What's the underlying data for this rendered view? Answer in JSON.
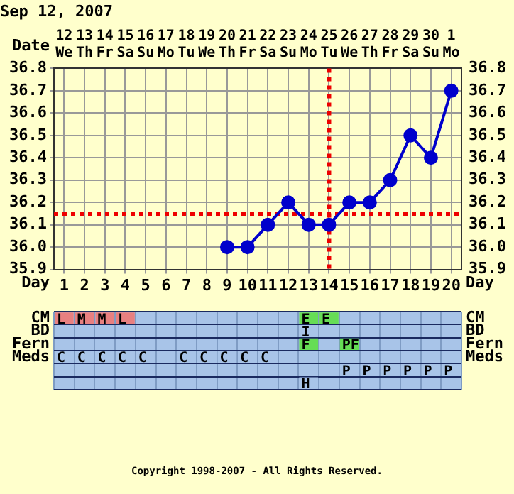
{
  "chart_data": [
    {
      "type": "line",
      "title": "Sep 12, 2007",
      "xlabel": "Day",
      "x2label": "Date",
      "xlim": [
        0.5,
        20.5
      ],
      "xticks": [
        1,
        2,
        3,
        4,
        5,
        6,
        7,
        8,
        9,
        10,
        11,
        12,
        13,
        14,
        15,
        16,
        17,
        18,
        19,
        20
      ],
      "x2lim": [
        "2007-09-11T12:00",
        "2007-10-01T12:00"
      ],
      "x2ticks": [
        {
          "value": "2007-09-12",
          "label": "12\nWe"
        },
        {
          "value": "2007-09-13",
          "label": "13\nTh"
        },
        {
          "value": "2007-09-14",
          "label": "14\nFr"
        },
        {
          "value": "2007-09-15",
          "label": "15\nSa"
        },
        {
          "value": "2007-09-16",
          "label": "16\nSu"
        },
        {
          "value": "2007-09-17",
          "label": "17\nMo"
        },
        {
          "value": "2007-09-18",
          "label": "18\nTu"
        },
        {
          "value": "2007-09-19",
          "label": "19\nWe"
        },
        {
          "value": "2007-09-20",
          "label": "20\nTh"
        },
        {
          "value": "2007-09-21",
          "label": "21\nFr"
        },
        {
          "value": "2007-09-22",
          "label": "22\nSa"
        },
        {
          "value": "2007-09-23",
          "label": "23\nSu"
        },
        {
          "value": "2007-09-24",
          "label": "24\nMo"
        },
        {
          "value": "2007-09-25",
          "label": "25\nTu"
        },
        {
          "value": "2007-09-26",
          "label": "26\nWe"
        },
        {
          "value": "2007-09-27",
          "label": "27\nTh"
        },
        {
          "value": "2007-09-28",
          "label": "28\nFr"
        },
        {
          "value": "2007-09-29",
          "label": "29\nSa"
        },
        {
          "value": "2007-09-30",
          "label": "30\nSu"
        },
        {
          "value": "2007-10-01",
          "label": "1\nMo"
        }
      ],
      "ylim": [
        35.9,
        36.8
      ],
      "yticks": [
        35.9,
        {
          "value": 36,
          "label": "36.0"
        },
        36.1,
        36.2,
        36.3,
        36.4,
        36.5,
        36.6,
        36.7,
        36.8
      ],
      "y2lim": [
        35.9,
        36.8
      ],
      "y2ticks": [
        35.9,
        {
          "value": 36,
          "label": "36.0"
        },
        36.1,
        36.2,
        36.3,
        36.4,
        36.5,
        36.6,
        36.7,
        36.8
      ],
      "series": [
        {
          "color": "#0000cc",
          "x": [
            9,
            10,
            11,
            12,
            13,
            14,
            15,
            16,
            17,
            18,
            19,
            20
          ],
          "values": [
            36.0,
            36.0,
            36.1,
            36.2,
            36.1,
            36.1,
            36.2,
            36.2,
            36.3,
            36.5,
            36.4,
            36.7
          ]
        }
      ],
      "ref_lines": [
        {
          "axis": "y",
          "value": 36.15,
          "color": "#ee0000",
          "line_style": "dotted"
        },
        {
          "axis": "x",
          "value": 14,
          "color": "#ee0000",
          "line_style": "dotted"
        }
      ],
      "grid": true,
      "marker": "circle",
      "line_style": "solid"
    },
    {
      "type": "heatmap",
      "categories": [
        null,
        null,
        null,
        null,
        null,
        null,
        null,
        null,
        null,
        null,
        null,
        null,
        null,
        null,
        null,
        null,
        null,
        null,
        null,
        null
      ],
      "y_categories": [
        "CM",
        "BD",
        "Fern",
        "Meds",
        null,
        null
      ],
      "y2_categories": [
        "CM",
        "BD",
        "Fern",
        "Meds",
        null,
        null
      ],
      "cells": [
        [
          "L",
          "M",
          "M",
          "L",
          null,
          null,
          null,
          null,
          null,
          null,
          null,
          null,
          "E",
          "E",
          null,
          null,
          null,
          null,
          null,
          null
        ],
        [
          null,
          null,
          null,
          null,
          null,
          null,
          null,
          null,
          null,
          null,
          null,
          null,
          "I",
          null,
          null,
          null,
          null,
          null,
          null,
          null
        ],
        [
          null,
          null,
          null,
          null,
          null,
          null,
          null,
          null,
          null,
          null,
          null,
          null,
          "F",
          null,
          "PF",
          null,
          null,
          null,
          null,
          null
        ],
        [
          "C",
          "C",
          "C",
          "C",
          "C",
          null,
          "C",
          "C",
          "C",
          "C",
          "C",
          null,
          null,
          null,
          null,
          null,
          null,
          null,
          null,
          null
        ],
        [
          null,
          null,
          null,
          null,
          null,
          null,
          null,
          null,
          null,
          null,
          null,
          null,
          null,
          null,
          "P",
          "P",
          "P",
          "P",
          "P",
          "P"
        ],
        [
          null,
          null,
          null,
          null,
          null,
          null,
          null,
          null,
          null,
          null,
          null,
          null,
          "H",
          null,
          null,
          null,
          null,
          null,
          null,
          null
        ]
      ],
      "colors": [
        [
          "#e88080",
          "#e88080",
          "#e88080",
          "#e88080",
          null,
          null,
          null,
          null,
          null,
          null,
          null,
          null,
          "#66dd55",
          "#66dd55",
          null,
          null,
          null,
          null,
          null,
          null
        ],
        [
          null,
          null,
          null,
          null,
          null,
          null,
          null,
          null,
          null,
          null,
          null,
          null,
          "#a8c4e8",
          null,
          null,
          null,
          null,
          null,
          null,
          null
        ],
        [
          null,
          null,
          null,
          null,
          null,
          null,
          null,
          null,
          null,
          null,
          null,
          null,
          "#66dd55",
          null,
          "#66dd55",
          null,
          null,
          null,
          null,
          null
        ],
        [
          "#a8c4e8",
          "#a8c4e8",
          "#a8c4e8",
          "#a8c4e8",
          "#a8c4e8",
          null,
          "#a8c4e8",
          "#a8c4e8",
          "#a8c4e8",
          "#a8c4e8",
          "#a8c4e8",
          null,
          null,
          null,
          null,
          null,
          null,
          null,
          null,
          null
        ],
        [
          null,
          null,
          null,
          null,
          null,
          null,
          null,
          null,
          null,
          null,
          null,
          null,
          null,
          null,
          "#a8c4e8",
          "#a8c4e8",
          "#a8c4e8",
          "#a8c4e8",
          "#a8c4e8",
          "#a8c4e8"
        ],
        [
          null,
          null,
          null,
          null,
          null,
          null,
          null,
          null,
          null,
          null,
          null,
          null,
          "#a8c4e8",
          null,
          null,
          null,
          null,
          null,
          null,
          null
        ]
      ],
      "annotations": [
        "Copyright 1998-2007 - All Rights Reserved."
      ]
    }
  ]
}
